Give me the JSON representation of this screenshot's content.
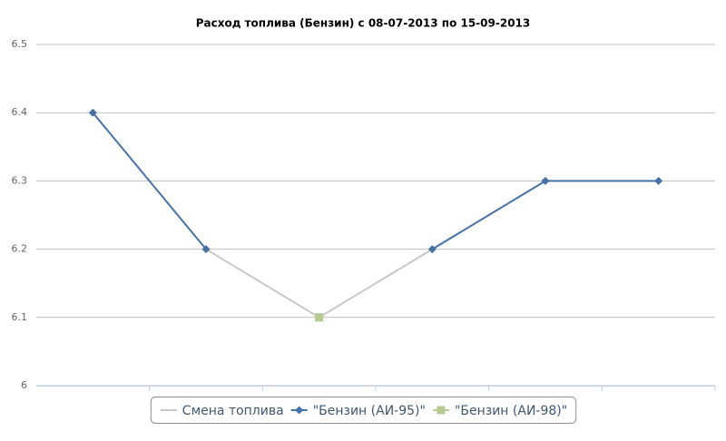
{
  "chart_data": {
    "type": "line",
    "title": "Расход топлива (Бензин) с 08-07-2013 по 15-09-2013",
    "categories": [
      null,
      null,
      null,
      null,
      null,
      null
    ],
    "series": [
      {
        "name": "Смена топлива",
        "color": "#c8c8c8",
        "marker": null,
        "values": [
          null,
          6.2,
          6.1,
          6.2,
          null,
          null
        ]
      },
      {
        "name": "\"Бензин (АИ-95)\"",
        "color": "#4572a7",
        "marker": "diamond",
        "values": [
          6.4,
          6.2,
          null,
          6.2,
          6.3,
          6.3
        ]
      },
      {
        "name": "\"Бензин (АИ-98)\"",
        "color": "#b5ca92",
        "marker": "square",
        "values": [
          null,
          null,
          6.1,
          null,
          null,
          null
        ]
      }
    ],
    "ylim": [
      6,
      6.5
    ],
    "yticks": [
      6,
      6.1,
      6.2,
      6.3,
      6.4,
      6.5
    ],
    "grid": true,
    "legend": "bottom"
  }
}
